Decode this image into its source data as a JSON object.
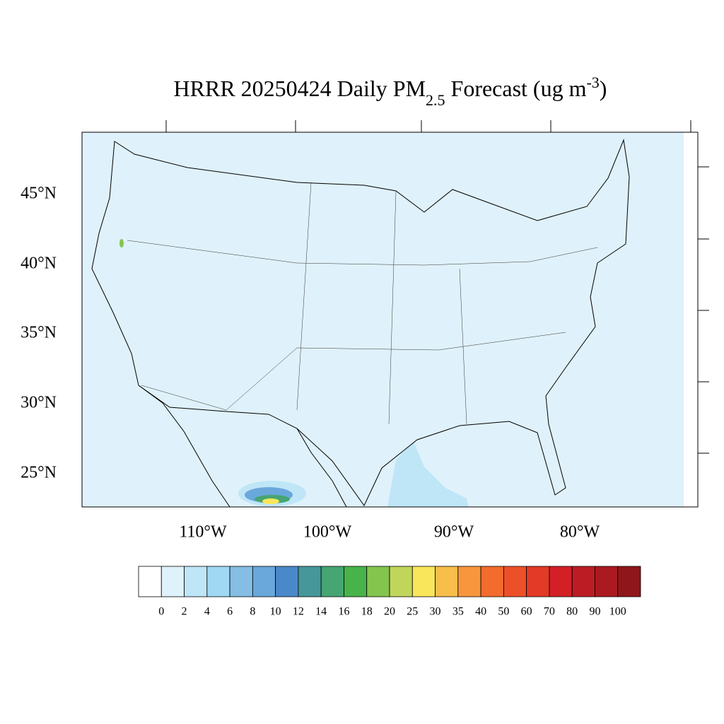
{
  "title": {
    "main": "HRRR 20250424 Daily PM",
    "sub": "2.5",
    "mid": " Forecast (ug m",
    "sup": "-3",
    "end": ")"
  },
  "map": {
    "lat_labels": [
      "45°N",
      "40°N",
      "35°N",
      "30°N",
      "25°N"
    ],
    "lon_labels": [
      "110°W",
      "100°W",
      "90°W",
      "80°W"
    ]
  },
  "colorbar": {
    "colors": [
      "#ffffff",
      "#dff1fa",
      "#bfe6f7",
      "#a0d8f3",
      "#85bde4",
      "#6aa7db",
      "#4b88c9",
      "#45979a",
      "#46a573",
      "#47b34a",
      "#84c54e",
      "#c0d65b",
      "#f9e65b",
      "#f8be4a",
      "#f8963d",
      "#f36b2d",
      "#ec5029",
      "#e23a26",
      "#d32027",
      "#bc1d25",
      "#ab1a20",
      "#8f161b"
    ],
    "labels": [
      0,
      2,
      4,
      6,
      8,
      10,
      12,
      14,
      16,
      18,
      20,
      25,
      30,
      35,
      40,
      50,
      60,
      70,
      80,
      90,
      100
    ]
  }
}
